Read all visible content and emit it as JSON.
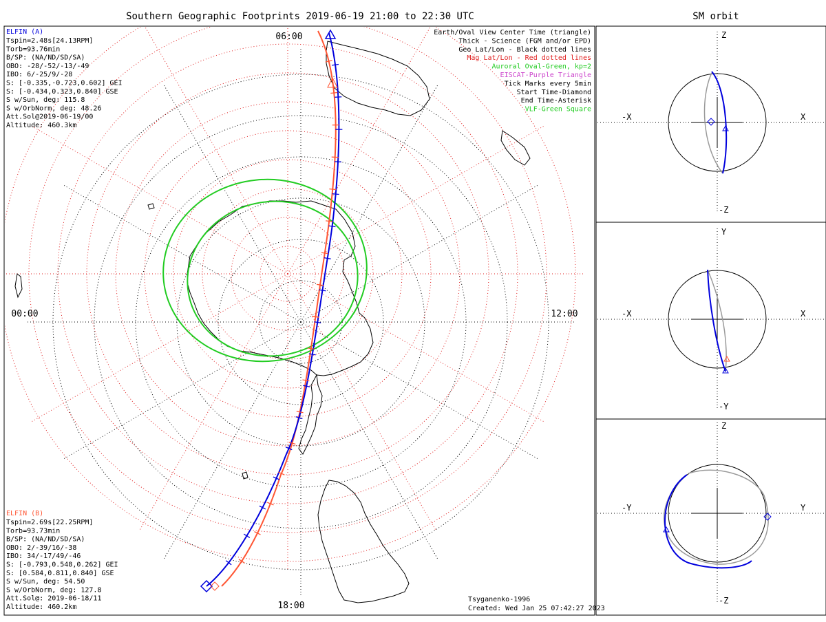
{
  "title": "Southern Geographic Footprints 2019-06-19 21:00 to 22:30 UTC",
  "sm_title": "SM orbit",
  "colors": {
    "elfin_a": "#0000dd",
    "elfin_b": "#ff5533",
    "aurora": "#22cc22",
    "mag_grid": "#e02020",
    "eiscat": "#cc44cc",
    "vlf": "#22cc22",
    "orbit_gray": "#9a9a9a"
  },
  "mlt_labels": {
    "top": "06:00",
    "left": "00:00",
    "right": "12:00",
    "bottom": "18:00"
  },
  "elfin_a": {
    "label": "ELFIN (A)",
    "lines": [
      "Tspin=2.48s[24.13RPM]",
      "Torb=93.76min",
      "B/SP: (NA/ND/SD/SA)",
      "OBO: -28/-52/-13/-49",
      "IBO: 6/-25/9/-28",
      "S: [-0.335,-0.723,0.602] GEI",
      "S: [-0.434,0.323,0.840] GSE",
      "S w/Sun, deg: 115.8",
      "S w/OrbNorm, deg: 48.26",
      "Att.Sol@2019-06-19/00",
      "Altitude: 460.3km"
    ]
  },
  "elfin_b": {
    "label": "ELFIN (B)",
    "lines": [
      "Tspin=2.69s[22.25RPM]",
      "Torb=93.73min",
      "B/SP: (NA/ND/SD/SA)",
      "OBO: 2/-39/16/-38",
      "IBO: 34/-17/49/-46",
      "S: [-0.793,0.548,0.262] GEI",
      "S: [0.584,0.811,0.840] GSE",
      "S w/Sun, deg: 54.50",
      "S w/OrbNorm, deg: 127.8",
      "Att.Sol@: 2019-06-18/11",
      "Altitude: 460.2km"
    ]
  },
  "legend": [
    {
      "text": "Earth/Oval View Center Time (triangle)",
      "color": "#000000"
    },
    {
      "text": "Thick - Science (FGM and/or EPD)",
      "color": "#000000"
    },
    {
      "text": "Geo Lat/Lon - Black dotted lines",
      "color": "#000000"
    },
    {
      "text": "Mag Lat/Lon - Red dotted lines",
      "color": "#e02020"
    },
    {
      "text": "Auroral Oval-Green, kp=2",
      "color": "#22cc22"
    },
    {
      "text": "EISCAT-Purple Triangle",
      "color": "#cc44cc"
    },
    {
      "text": "Tick Marks every 5min",
      "color": "#000000"
    },
    {
      "text": "Start Time-Diamond",
      "color": "#000000"
    },
    {
      "text": "End Time-Asterisk",
      "color": "#000000"
    },
    {
      "text": "VLF-Green Square",
      "color": "#22cc22"
    }
  ],
  "footer": {
    "model": "Tsyganenko-1996",
    "created": "Created: Wed Jan 25 07:42:27 2023"
  },
  "sm_panels": [
    {
      "top": "Z",
      "bottom": "-Z",
      "left": "-X",
      "right": "X"
    },
    {
      "top": "Y",
      "bottom": "-Y",
      "left": "-X",
      "right": "X"
    },
    {
      "top": "Z",
      "bottom": "-Z",
      "left": "-Y",
      "right": "Y"
    }
  ]
}
